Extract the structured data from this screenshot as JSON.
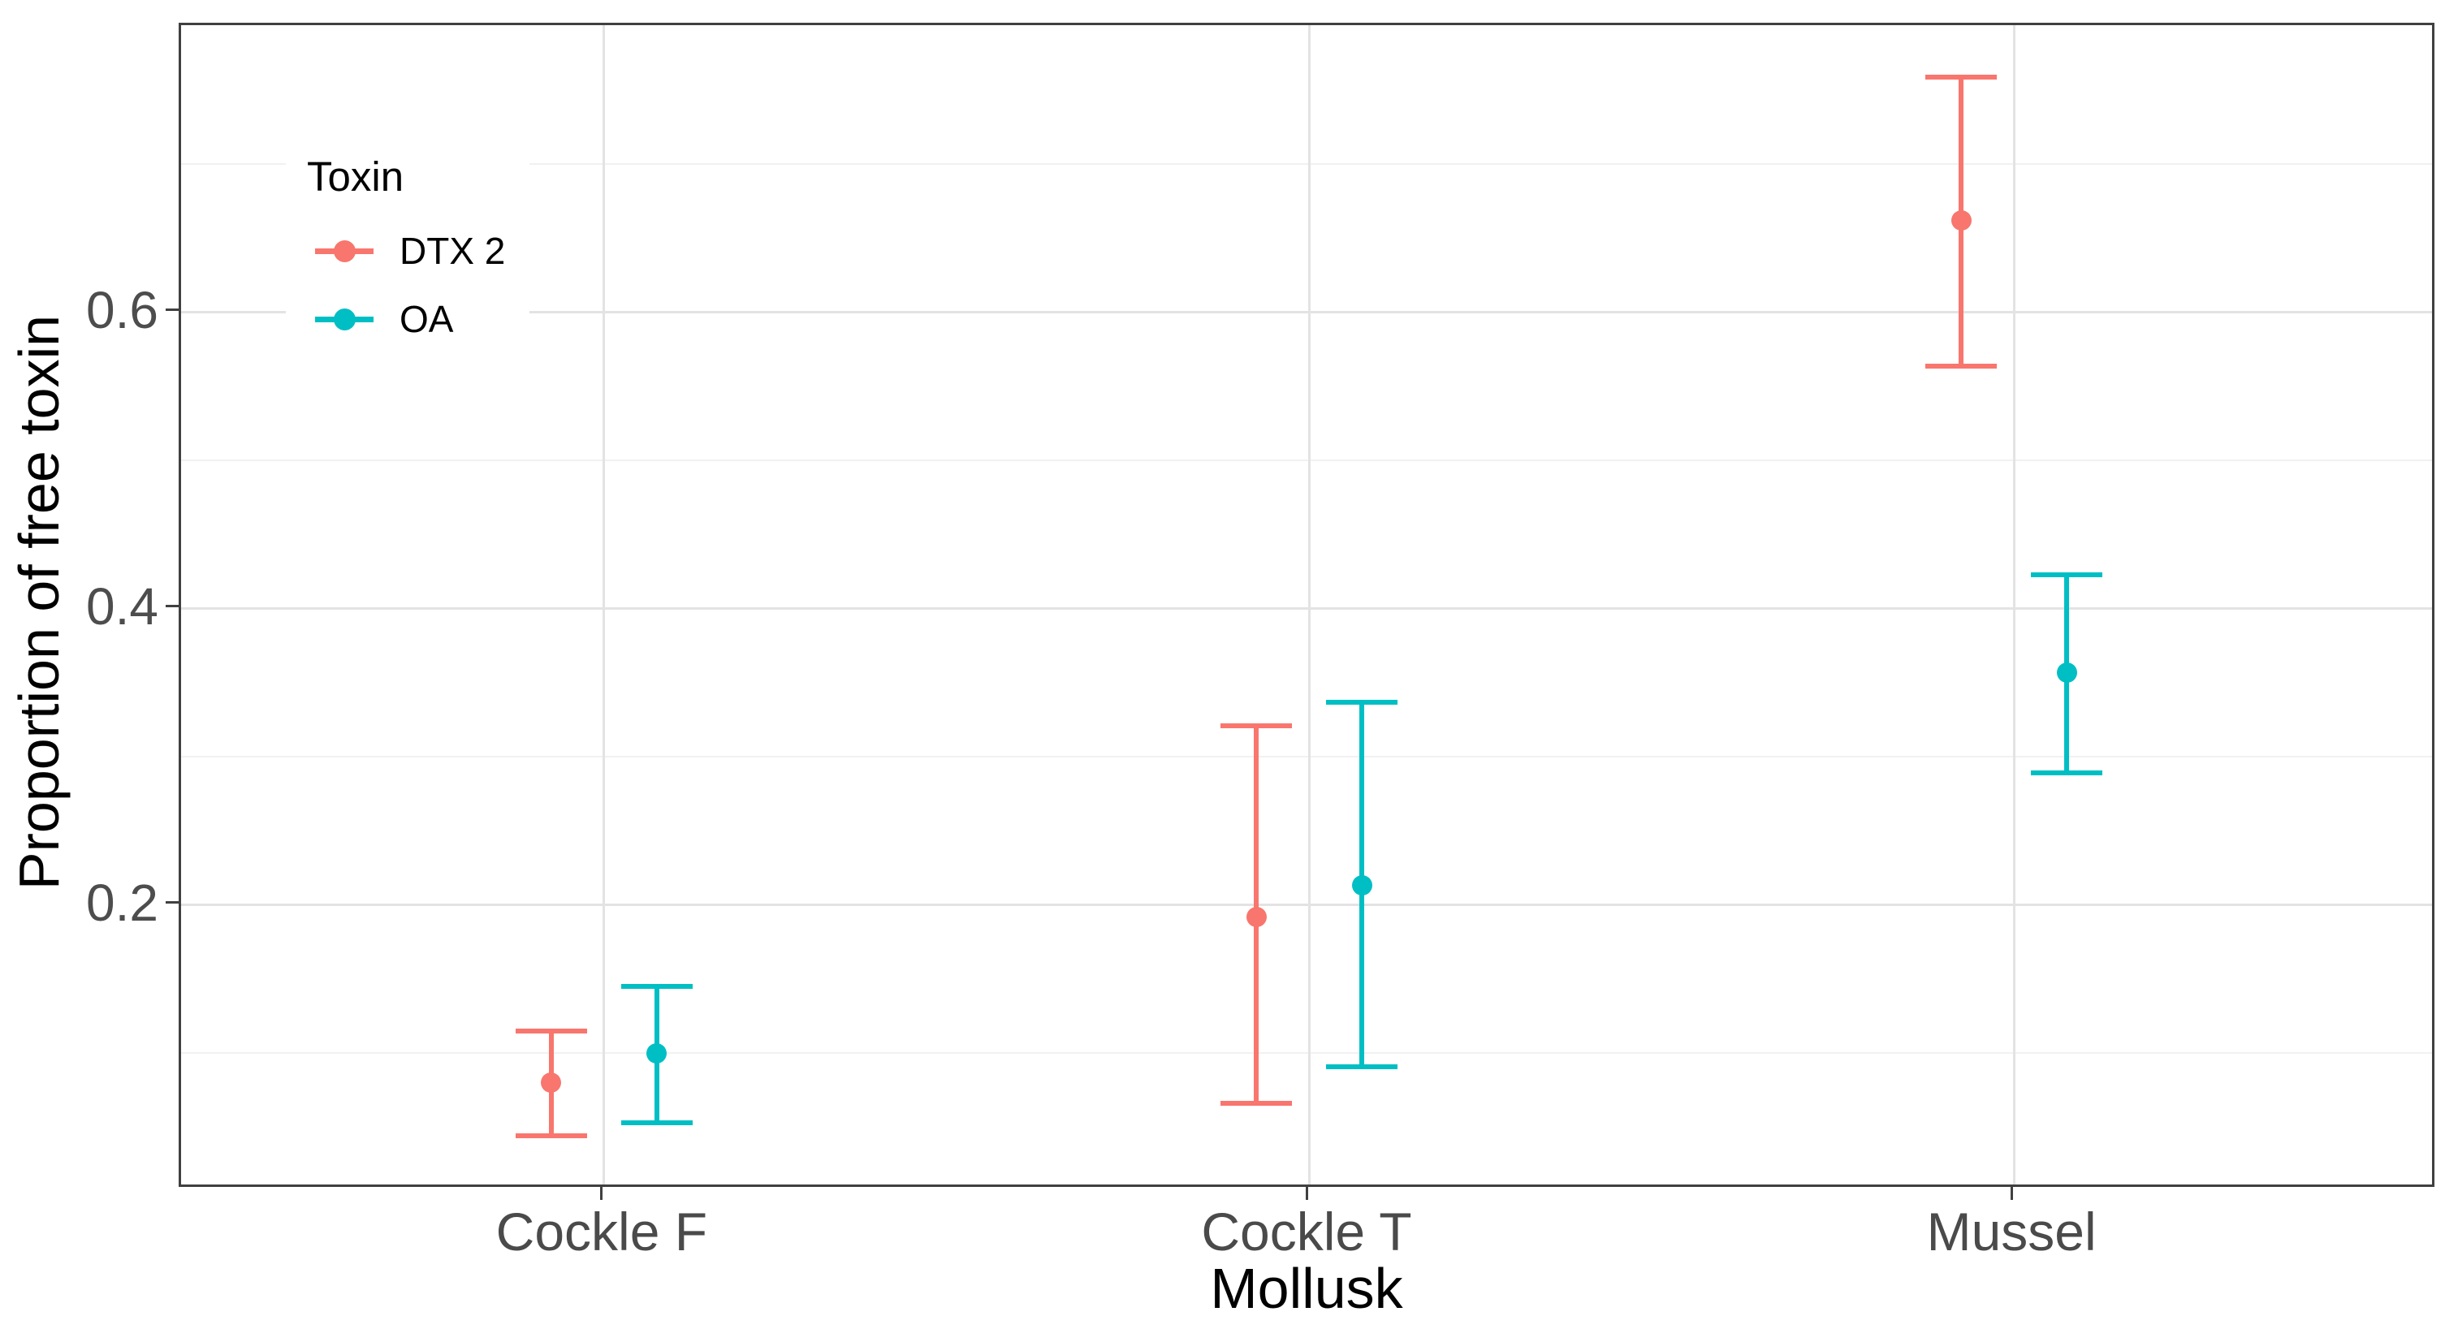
{
  "chart_data": {
    "type": "pointrange",
    "title": "",
    "xlabel": "Mollusk",
    "ylabel": "Proportion of free toxin",
    "categories": [
      "Cockle F",
      "Cockle T",
      "Mussel"
    ],
    "series": [
      {
        "name": "DTX 2",
        "color": "#F8766D",
        "points": [
          {
            "category": "Cockle F",
            "y": 0.08,
            "ymin": 0.044,
            "ymax": 0.115
          },
          {
            "category": "Cockle T",
            "y": 0.192,
            "ymin": 0.066,
            "ymax": 0.321
          },
          {
            "category": "Mussel",
            "y": 0.662,
            "ymin": 0.564,
            "ymax": 0.759
          }
        ]
      },
      {
        "name": "OA",
        "color": "#00BFC4",
        "points": [
          {
            "category": "Cockle F",
            "y": 0.1,
            "ymin": 0.053,
            "ymax": 0.145
          },
          {
            "category": "Cockle T",
            "y": 0.213,
            "ymin": 0.091,
            "ymax": 0.337
          },
          {
            "category": "Mussel",
            "y": 0.357,
            "ymin": 0.289,
            "ymax": 0.423
          }
        ]
      }
    ],
    "ylim": [
      0.008,
      0.794
    ],
    "y_major_ticks": [
      0.2,
      0.4,
      0.6
    ],
    "y_minor_gridlines": [
      0.1,
      0.3,
      0.5,
      0.7
    ],
    "grid": true,
    "legend": {
      "title": "Toxin",
      "position": "inside-top-left"
    }
  },
  "colors": {
    "dtx2": "#F8766D",
    "oa": "#00BFC4",
    "panel_border": "#404040",
    "grid_major": "#e3e3e3",
    "grid_minor": "#f1f1f1",
    "tick_label": "#4d4d4d",
    "axis_title": "#000000",
    "background": "#ffffff"
  }
}
